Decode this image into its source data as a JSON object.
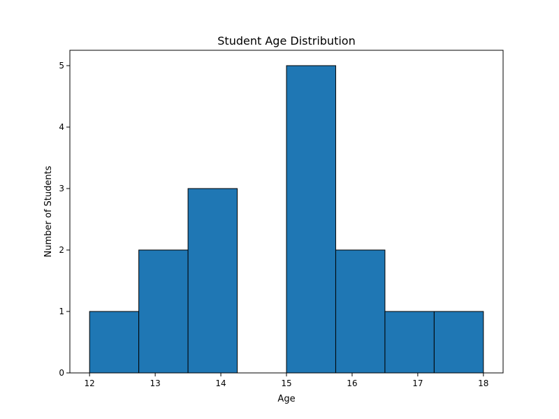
{
  "chart_data": {
    "type": "bar",
    "title": "Student Age Distribution",
    "xlabel": "Age",
    "ylabel": "Number of Students",
    "bin_edges": [
      12,
      12.75,
      13.5,
      14.25,
      15,
      15.75,
      16.5,
      17.25,
      18
    ],
    "counts": [
      1,
      2,
      3,
      0,
      5,
      2,
      1,
      1
    ],
    "xlim": [
      11.7,
      18.3
    ],
    "ylim": [
      0,
      5.25
    ],
    "xticks": [
      12,
      13,
      14,
      15,
      16,
      17,
      18
    ],
    "yticks": [
      0,
      1,
      2,
      3,
      4,
      5
    ],
    "grid": false,
    "colors": {
      "bar_fill": "#1f77b4",
      "bar_edge": "#000000",
      "axes": "#000000"
    }
  }
}
